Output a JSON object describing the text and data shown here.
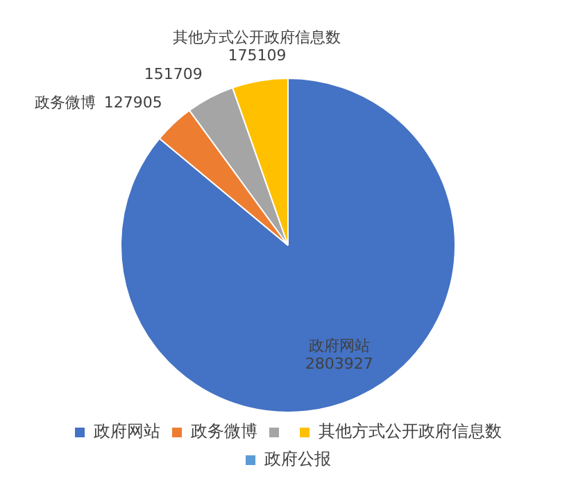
{
  "chart_data": {
    "type": "pie",
    "categories": [
      "政府网站",
      "政务微博",
      null,
      "其他方式公开政府信息数",
      "政府公报"
    ],
    "values": [
      2803927,
      127905,
      151709,
      175109,
      0
    ],
    "colors": [
      "#4472c4",
      "#ed7d31",
      "#a5a5a5",
      "#ffc000",
      "#5b9bd5"
    ],
    "data_labels": true,
    "legend": "bottom"
  }
}
